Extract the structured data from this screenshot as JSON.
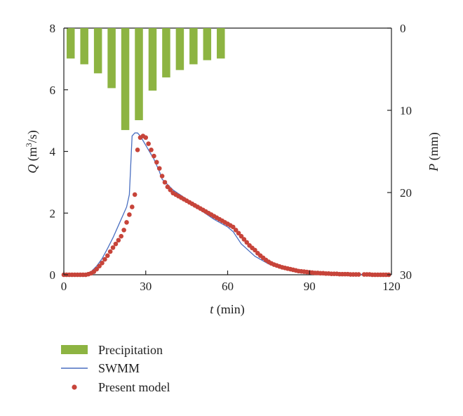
{
  "colors": {
    "precipitation": "#8db442",
    "swmm": "#4a6fc1",
    "model": "#c7443a",
    "axis": "#222222"
  },
  "axes": {
    "x_label_var": "t",
    "x_label_unit": " (min)",
    "q_label_var": "Q",
    "q_label_unit_pre": " (m",
    "q_label_sup": "3",
    "q_label_unit_post": "/s)",
    "p_label_var": "P",
    "p_label_unit": " (mm)"
  },
  "legend": {
    "precipitation": "Precipitation",
    "swmm": "SWMM",
    "model": "Present model"
  },
  "chart_data": {
    "type": "line",
    "x_axis": {
      "label": "t (min)",
      "range": [
        0,
        120
      ],
      "ticks": [
        0,
        30,
        60,
        90,
        120
      ]
    },
    "y_left": {
      "label": "Q (m3/s)",
      "range": [
        0,
        8
      ],
      "ticks": [
        0,
        2,
        4,
        6,
        8
      ]
    },
    "y_right": {
      "label": "P (mm)",
      "range": [
        0,
        30
      ],
      "inverted": true,
      "ticks": [
        0,
        10,
        20,
        30
      ]
    },
    "grid": false,
    "legend_position": "bottom-left",
    "series": [
      {
        "name": "Precipitation",
        "type": "bar",
        "axis": "right",
        "x": [
          2.5,
          7.5,
          12.5,
          17.5,
          22.5,
          27.5,
          32.5,
          37.5,
          42.5,
          47.5,
          52.5,
          57.5
        ],
        "values": [
          3.7,
          4.4,
          5.5,
          7.3,
          12.4,
          11.2,
          7.6,
          6.0,
          5.1,
          4.4,
          3.9,
          3.7
        ]
      },
      {
        "name": "SWMM",
        "type": "line",
        "axis": "left",
        "x": [
          0,
          5,
          8,
          10,
          12,
          14,
          16,
          18,
          20,
          22,
          23,
          24,
          25,
          26,
          27,
          28,
          29,
          30,
          31,
          32,
          33,
          34,
          35,
          36,
          40,
          45,
          50,
          55,
          60,
          62,
          65,
          70,
          75,
          80,
          85,
          90,
          95,
          100,
          105,
          110,
          115,
          120
        ],
        "values": [
          0.0,
          0.0,
          0.03,
          0.1,
          0.28,
          0.52,
          0.85,
          1.2,
          1.6,
          2.0,
          2.2,
          2.6,
          4.5,
          4.6,
          4.6,
          4.5,
          4.35,
          4.2,
          4.05,
          3.9,
          3.75,
          3.55,
          3.35,
          3.1,
          2.75,
          2.45,
          2.1,
          1.8,
          1.55,
          1.4,
          1.0,
          0.6,
          0.35,
          0.2,
          0.12,
          0.08,
          0.05,
          0.03,
          0.02,
          0.01,
          0.01,
          0.0
        ]
      },
      {
        "name": "Present model",
        "type": "scatter",
        "axis": "left",
        "x": [
          0,
          1,
          2,
          3,
          4,
          5,
          6,
          7,
          8,
          9,
          10,
          11,
          12,
          13,
          14,
          15,
          16,
          17,
          18,
          19,
          20,
          21,
          22,
          23,
          24,
          25,
          26,
          27,
          28,
          29,
          30,
          31,
          32,
          33,
          34,
          35,
          36,
          37,
          38,
          39,
          40,
          41,
          42,
          43,
          44,
          45,
          46,
          47,
          48,
          49,
          50,
          51,
          52,
          53,
          54,
          55,
          56,
          57,
          58,
          59,
          60,
          61,
          62,
          63,
          64,
          65,
          66,
          67,
          68,
          69,
          70,
          71,
          72,
          73,
          74,
          75,
          76,
          77,
          78,
          79,
          80,
          81,
          82,
          83,
          84,
          85,
          86,
          87,
          88,
          89,
          90,
          91,
          92,
          93,
          94,
          95,
          96,
          97,
          98,
          99,
          100,
          101,
          102,
          103,
          104,
          105,
          106,
          107,
          108,
          110,
          111,
          112,
          113,
          114,
          115,
          116,
          117,
          118,
          119
        ],
        "values": [
          0.0,
          0.0,
          0.0,
          0.0,
          0.0,
          0.0,
          0.0,
          0.0,
          0.0,
          0.02,
          0.05,
          0.1,
          0.18,
          0.28,
          0.38,
          0.5,
          0.62,
          0.75,
          0.88,
          1.0,
          1.12,
          1.25,
          1.45,
          1.7,
          1.95,
          2.2,
          2.6,
          4.05,
          4.45,
          4.5,
          4.45,
          4.25,
          4.05,
          3.85,
          3.65,
          3.45,
          3.2,
          3.0,
          2.85,
          2.75,
          2.65,
          2.6,
          2.55,
          2.5,
          2.45,
          2.4,
          2.35,
          2.3,
          2.25,
          2.2,
          2.15,
          2.1,
          2.05,
          2.0,
          1.95,
          1.9,
          1.85,
          1.8,
          1.75,
          1.7,
          1.65,
          1.6,
          1.55,
          1.45,
          1.35,
          1.25,
          1.15,
          1.05,
          0.95,
          0.87,
          0.8,
          0.7,
          0.62,
          0.55,
          0.48,
          0.42,
          0.37,
          0.33,
          0.3,
          0.27,
          0.24,
          0.22,
          0.2,
          0.18,
          0.16,
          0.14,
          0.12,
          0.11,
          0.1,
          0.09,
          0.08,
          0.07,
          0.06,
          0.06,
          0.05,
          0.05,
          0.04,
          0.04,
          0.03,
          0.03,
          0.03,
          0.02,
          0.02,
          0.02,
          0.02,
          0.01,
          0.01,
          0.01,
          0.01,
          0.01,
          0.01,
          0.01,
          0.0,
          0.0,
          0.0,
          0.0,
          0.0,
          0.0,
          0.0
        ]
      }
    ]
  }
}
